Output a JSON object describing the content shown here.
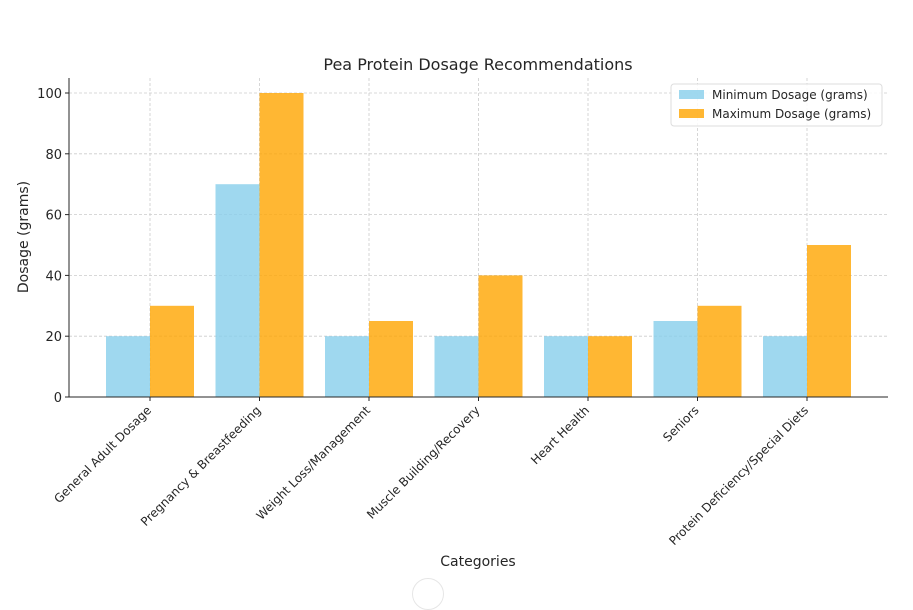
{
  "chart_data": {
    "type": "bar",
    "title": "Pea Protein Dosage Recommendations",
    "xlabel": "Categories",
    "ylabel": "Dosage (grams)",
    "ylim": [
      0,
      105
    ],
    "yticks": [
      0,
      20,
      40,
      60,
      80,
      100
    ],
    "grid": true,
    "legend_position": "top-right",
    "categories": [
      "General Adult Dosage",
      "Pregnancy & Breastfeeding",
      "Weight Loss/Management",
      "Muscle Building/Recovery",
      "Heart Health",
      "Seniors",
      "Protein Deficiency/Special Diets"
    ],
    "series": [
      {
        "name": "Minimum Dosage (grams)",
        "color": "#87ceeb",
        "values": [
          20,
          70,
          20,
          20,
          20,
          25,
          20
        ]
      },
      {
        "name": "Maximum Dosage (grams)",
        "color": "#ffa500",
        "values": [
          30,
          100,
          25,
          40,
          20,
          30,
          50
        ]
      }
    ]
  }
}
